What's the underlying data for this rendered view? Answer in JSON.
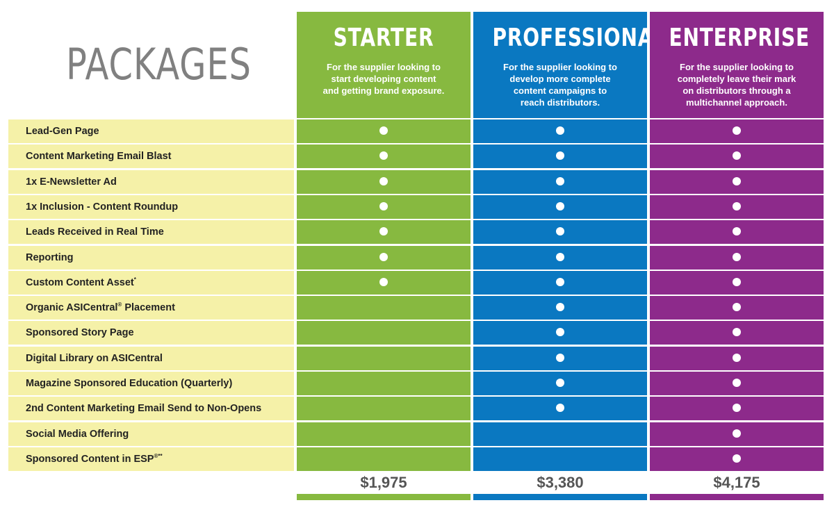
{
  "title": "PACKAGES",
  "colors": {
    "starter": "#87b940",
    "professional": "#0a78c1",
    "enterprise": "#8d2a8b",
    "feature_bg": "#f5f1a8"
  },
  "packages": [
    {
      "name": "STARTER",
      "desc_lines": [
        "For the supplier looking to",
        "start developing content",
        "and getting brand exposure."
      ],
      "price": "$1,975"
    },
    {
      "name": "PROFESSIONAL",
      "desc_lines": [
        "For the supplier looking to",
        "develop more complete",
        "content campaigns to",
        "reach distributors."
      ],
      "price": "$3,380"
    },
    {
      "name": "ENTERPRISE",
      "desc_lines": [
        "For the supplier looking to",
        "completely leave their mark",
        "on distributors through a",
        "multichannel approach."
      ],
      "price": "$4,175"
    }
  ],
  "features": [
    {
      "label": "Lead-Gen Page",
      "sup": "",
      "included": [
        true,
        true,
        true
      ]
    },
    {
      "label": "Content Marketing Email Blast",
      "sup": "",
      "included": [
        true,
        true,
        true
      ]
    },
    {
      "label": "1x E-Newsletter Ad",
      "sup": "",
      "included": [
        true,
        true,
        true
      ]
    },
    {
      "label": "1x Inclusion - Content Roundup",
      "sup": "",
      "included": [
        true,
        true,
        true
      ]
    },
    {
      "label": "Leads Received in Real Time",
      "sup": "",
      "included": [
        true,
        true,
        true
      ]
    },
    {
      "label": "Reporting",
      "sup": "",
      "included": [
        true,
        true,
        true
      ]
    },
    {
      "label": "Custom Content Asset",
      "sup": "*",
      "included": [
        true,
        true,
        true
      ]
    },
    {
      "label": "Organic ASICentral",
      "sup": "®",
      "suffix": " Placement",
      "included": [
        false,
        true,
        true
      ]
    },
    {
      "label": "Sponsored Story Page",
      "sup": "",
      "included": [
        false,
        true,
        true
      ]
    },
    {
      "label": "Digital Library on ASICentral",
      "sup": "",
      "included": [
        false,
        true,
        true
      ]
    },
    {
      "label": "Magazine Sponsored Education (Quarterly)",
      "sup": "",
      "included": [
        false,
        true,
        true
      ]
    },
    {
      "label": "2nd Content Marketing Email Send to Non-Opens",
      "sup": "",
      "included": [
        false,
        true,
        true
      ]
    },
    {
      "label": "Social Media Offering",
      "sup": "",
      "included": [
        false,
        false,
        true
      ]
    },
    {
      "label": "Sponsored Content in ESP",
      "sup": "®**",
      "included": [
        false,
        false,
        true
      ]
    }
  ]
}
